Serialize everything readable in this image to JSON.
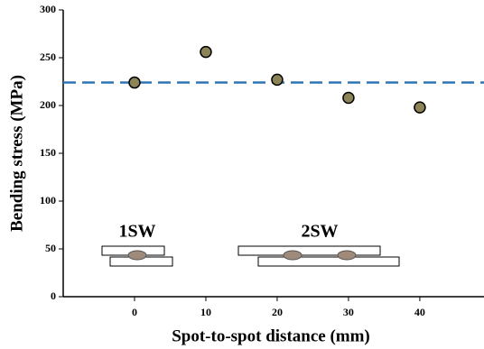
{
  "chart_data": {
    "type": "scatter",
    "x_label": "Spot-to-spot distance (mm)",
    "y_label": "Bending stress (MPa)",
    "x": [
      0,
      10,
      20,
      30,
      40
    ],
    "values": [
      224,
      256,
      227,
      208,
      198
    ],
    "color": "#8c8456",
    "reference_line": 224,
    "reference_color": "#2e75b6",
    "xlim": [
      -10,
      49
    ],
    "xticks": [
      0,
      10,
      20,
      30,
      40
    ],
    "ylim": [
      0,
      300
    ],
    "yticks": [
      0,
      50,
      100,
      150,
      200,
      250,
      300
    ],
    "annotations": [
      "1SW",
      "2SW"
    ]
  }
}
